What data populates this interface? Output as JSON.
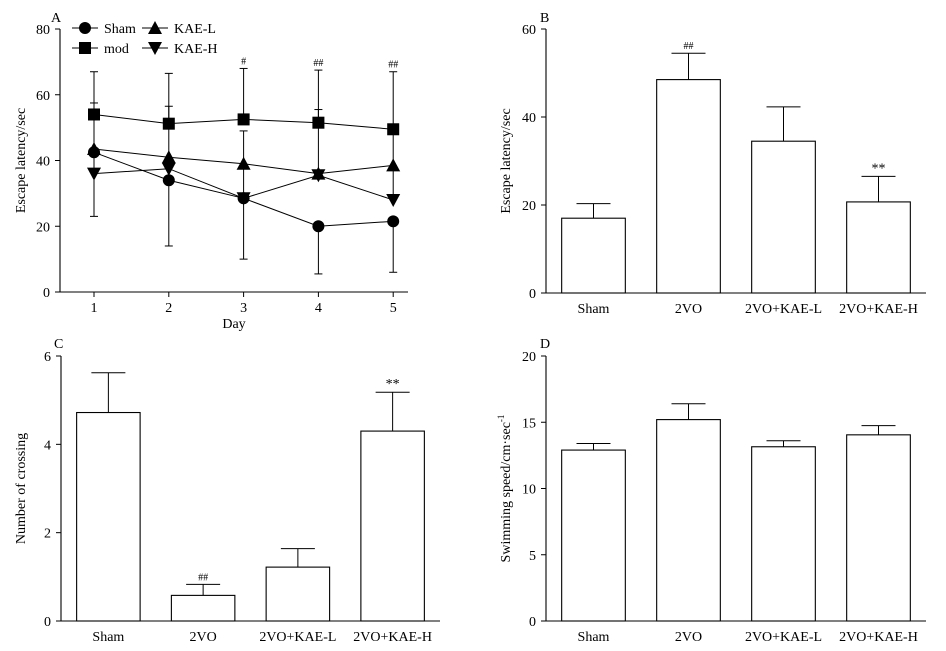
{
  "chart_data": [
    {
      "panel": "A",
      "type": "line",
      "title": "",
      "xlabel": "Day",
      "ylabel": "Escape latency/sec",
      "x": [
        1,
        2,
        3,
        4,
        5
      ],
      "xlim": [
        0.5,
        5.3
      ],
      "ylim": [
        0,
        80
      ],
      "yticks": [
        0,
        20,
        40,
        60,
        80
      ],
      "grid": false,
      "legend_position": "top-left",
      "series": [
        {
          "name": "Sham",
          "marker": "circle",
          "values": [
            42.5,
            34,
            28.5,
            20,
            21.5
          ],
          "err_high": [
            null,
            null,
            null,
            null,
            null
          ],
          "err_low": [
            null,
            14,
            10,
            5.5,
            6
          ]
        },
        {
          "name": "mod",
          "marker": "square",
          "values": [
            54,
            51.2,
            52.5,
            51.5,
            49.5
          ],
          "err_high": [
            67,
            66.5,
            68,
            67.5,
            67
          ],
          "err_low": [
            null,
            null,
            null,
            null,
            null
          ]
        },
        {
          "name": "KAE-L",
          "marker": "triangle-up",
          "values": [
            43.5,
            41,
            39,
            36,
            38.5
          ],
          "err_high": [
            null,
            null,
            null,
            null,
            null
          ],
          "err_low": [
            null,
            null,
            null,
            null,
            null
          ]
        },
        {
          "name": "KAE-H",
          "marker": "triangle-down",
          "values": [
            36,
            37.5,
            28.5,
            35.5,
            28
          ],
          "err_high": [
            57.5,
            56.5,
            49,
            55.5,
            48
          ],
          "err_low": [
            23,
            null,
            null,
            null,
            null
          ]
        }
      ],
      "annotations": [
        {
          "x": 3,
          "y": 68,
          "text": "#"
        },
        {
          "x": 4,
          "y": 67.5,
          "text": "##"
        },
        {
          "x": 5,
          "y": 67,
          "text": "##"
        }
      ]
    },
    {
      "panel": "B",
      "type": "bar",
      "title": "",
      "xlabel": "",
      "ylabel": "Escape latency/sec",
      "categories": [
        "Sham",
        "2VO",
        "2VO+KAE-L",
        "2VO+KAE-H"
      ],
      "values": [
        17,
        48.5,
        34.5,
        20.7
      ],
      "errors": [
        3.3,
        6,
        7.8,
        5.8
      ],
      "ylim": [
        0,
        60
      ],
      "yticks": [
        0,
        20,
        40,
        60
      ],
      "grid": false,
      "annotations": [
        "",
        "##",
        "",
        "**"
      ]
    },
    {
      "panel": "C",
      "type": "bar",
      "title": "",
      "xlabel": "",
      "ylabel": "Number of crossing",
      "categories": [
        "Sham",
        "2VO",
        "2VO+KAE-L",
        "2VO+KAE-H"
      ],
      "values": [
        4.72,
        0.58,
        1.22,
        4.3
      ],
      "errors": [
        0.9,
        0.25,
        0.42,
        0.88
      ],
      "ylim": [
        0,
        6
      ],
      "yticks": [
        0,
        2,
        4,
        6
      ],
      "grid": false,
      "annotations": [
        "",
        "##",
        "",
        "**"
      ]
    },
    {
      "panel": "D",
      "type": "bar",
      "title": "",
      "xlabel": "",
      "ylabel": "Swimming speed/cm·sec",
      "ylabel_superscript": "-1",
      "categories": [
        "Sham",
        "2VO",
        "2VO+KAE-L",
        "2VO+KAE-H"
      ],
      "values": [
        12.9,
        15.2,
        13.15,
        14.05
      ],
      "errors": [
        0.5,
        1.2,
        0.45,
        0.7
      ],
      "ylim": [
        0,
        20
      ],
      "yticks": [
        0,
        5,
        10,
        15,
        20
      ],
      "grid": false,
      "annotations": [
        "",
        "",
        "",
        ""
      ]
    }
  ]
}
